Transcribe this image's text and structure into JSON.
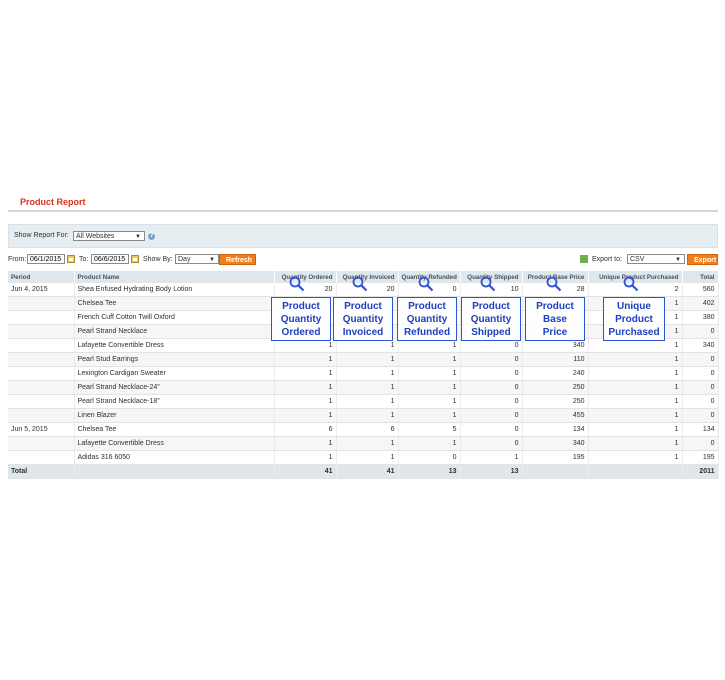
{
  "page": {
    "title": "Product Report"
  },
  "filter": {
    "show_report_for_label": "Show Report For:",
    "website_value": "All Websites"
  },
  "toolbar": {
    "from_label": "From:",
    "from_value": "06/1/2015",
    "to_label": "To:",
    "to_value": "06/6/2015",
    "show_by_label": "Show By:",
    "show_by_value": "Day",
    "refresh_label": "Refresh",
    "export_to_label": "Export to:",
    "export_format": "CSV",
    "export_label": "Export"
  },
  "table": {
    "headers": [
      "Period",
      "Product Name",
      "Quantity Ordered",
      "Quantity Invoiced",
      "Quantity Refunded",
      "Quantity Shipped",
      "Product Base Price",
      "Unique Product Purchased",
      "Total"
    ],
    "rows": [
      {
        "period": "Jun 4, 2015",
        "name": "Shea Enfused Hydrating Body Lotion",
        "ordered": "20",
        "invoiced": "20",
        "refunded": "0",
        "shipped": "10",
        "price": "28",
        "unique": "2",
        "total": "560"
      },
      {
        "period": "",
        "name": "Chelsea Tee",
        "ordered": "",
        "invoiced": "",
        "refunded": "",
        "shipped": "",
        "price": "",
        "unique": "1",
        "total": "402"
      },
      {
        "period": "",
        "name": "French Cuff Cotton Twill Oxford",
        "ordered": "",
        "invoiced": "",
        "refunded": "",
        "shipped": "",
        "price": "",
        "unique": "1",
        "total": "380"
      },
      {
        "period": "",
        "name": "Pearl Strand Necklace",
        "ordered": "",
        "invoiced": "",
        "refunded": "",
        "shipped": "",
        "price": "",
        "unique": "1",
        "total": "0"
      },
      {
        "period": "",
        "name": "Lafayette Convertible Dress",
        "ordered": "1",
        "invoiced": "1",
        "refunded": "1",
        "shipped": "0",
        "price": "340",
        "unique": "1",
        "total": "340"
      },
      {
        "period": "",
        "name": "Pearl Stud Earrings",
        "ordered": "1",
        "invoiced": "1",
        "refunded": "1",
        "shipped": "0",
        "price": "110",
        "unique": "1",
        "total": "0"
      },
      {
        "period": "",
        "name": "Lexington Cardigan Sweater",
        "ordered": "1",
        "invoiced": "1",
        "refunded": "1",
        "shipped": "0",
        "price": "240",
        "unique": "1",
        "total": "0"
      },
      {
        "period": "",
        "name": "Pearl Strand Necklace-24\"",
        "ordered": "1",
        "invoiced": "1",
        "refunded": "1",
        "shipped": "0",
        "price": "250",
        "unique": "1",
        "total": "0"
      },
      {
        "period": "",
        "name": "Pearl Strand Necklace-18\"",
        "ordered": "1",
        "invoiced": "1",
        "refunded": "1",
        "shipped": "0",
        "price": "250",
        "unique": "1",
        "total": "0"
      },
      {
        "period": "",
        "name": "Linen Blazer",
        "ordered": "1",
        "invoiced": "1",
        "refunded": "1",
        "shipped": "0",
        "price": "455",
        "unique": "1",
        "total": "0"
      },
      {
        "period": "Jun 5, 2015",
        "name": "Chelsea Tee",
        "ordered": "6",
        "invoiced": "6",
        "refunded": "5",
        "shipped": "0",
        "price": "134",
        "unique": "1",
        "total": "134"
      },
      {
        "period": "",
        "name": "Lafayette Convertible Dress",
        "ordered": "1",
        "invoiced": "1",
        "refunded": "1",
        "shipped": "0",
        "price": "340",
        "unique": "1",
        "total": "0"
      },
      {
        "period": "",
        "name": "Adidas 316 6050",
        "ordered": "1",
        "invoiced": "1",
        "refunded": "0",
        "shipped": "1",
        "price": "195",
        "unique": "1",
        "total": "195"
      }
    ],
    "totals": {
      "label": "Total",
      "ordered": "41",
      "invoiced": "41",
      "refunded": "13",
      "shipped": "13",
      "price": "",
      "unique": "",
      "total": "2011"
    }
  },
  "overlays": [
    {
      "line1": "Product",
      "line2": "Quantity",
      "line3": "Ordered"
    },
    {
      "line1": "Product",
      "line2": "Quantity",
      "line3": "Invoiced"
    },
    {
      "line1": "Product",
      "line2": "Quantity",
      "line3": "Refunded"
    },
    {
      "line1": "Product",
      "line2": "Quantity",
      "line3": "Shipped"
    },
    {
      "line1": "Product",
      "line2": "Base",
      "line3": "Price"
    },
    {
      "line1": "Unique",
      "line2": "Product",
      "line3": "Purchased"
    }
  ],
  "icons": {
    "help": "help-icon",
    "calendar": "calendar-icon",
    "export": "export-icon",
    "magnifier": "magnifier-icon"
  },
  "colors": {
    "title": "#e02d1b",
    "header_bg": "#dfe7ec",
    "button": "#f07e1a",
    "overlay": "#2d54d6"
  }
}
